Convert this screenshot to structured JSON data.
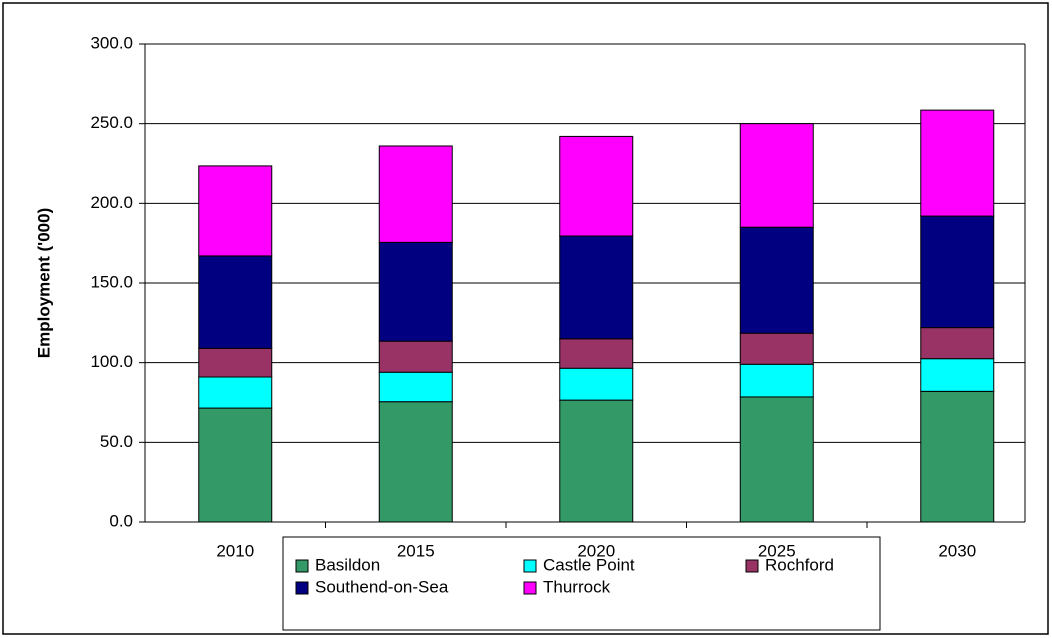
{
  "chart_data": {
    "type": "bar",
    "stacked": true,
    "y_label": "Employment ('000)",
    "categories": [
      "2010",
      "2015",
      "2020",
      "2025",
      "2030"
    ],
    "series": [
      {
        "name": "Basildon",
        "color": "#339966",
        "values": [
          71.5,
          75.5,
          76.5,
          78.5,
          82
        ]
      },
      {
        "name": "Castle Point",
        "color": "#00ffff",
        "values": [
          19.5,
          18.5,
          20,
          20.5,
          20.5
        ]
      },
      {
        "name": "Rochford",
        "color": "#993366",
        "values": [
          18,
          19.5,
          18.5,
          19.5,
          19.5
        ]
      },
      {
        "name": "Southend-on-Sea",
        "color": "#000080",
        "values": [
          58,
          62,
          64.5,
          66.5,
          70
        ]
      },
      {
        "name": "Thurrock",
        "color": "#ff00ff",
        "values": [
          56.5,
          60.5,
          62.5,
          65,
          66.5
        ]
      }
    ],
    "ylim": [
      0,
      300
    ],
    "yticks": [
      {
        "value": 0,
        "label": "0.0"
      },
      {
        "value": 50,
        "label": "50.0"
      },
      {
        "value": 100,
        "label": "100.0"
      },
      {
        "value": 150,
        "label": "150.0"
      },
      {
        "value": 200,
        "label": "200.0"
      },
      {
        "value": 250,
        "label": "250.0"
      },
      {
        "value": 300,
        "label": "300.0"
      }
    ],
    "grid": true
  }
}
